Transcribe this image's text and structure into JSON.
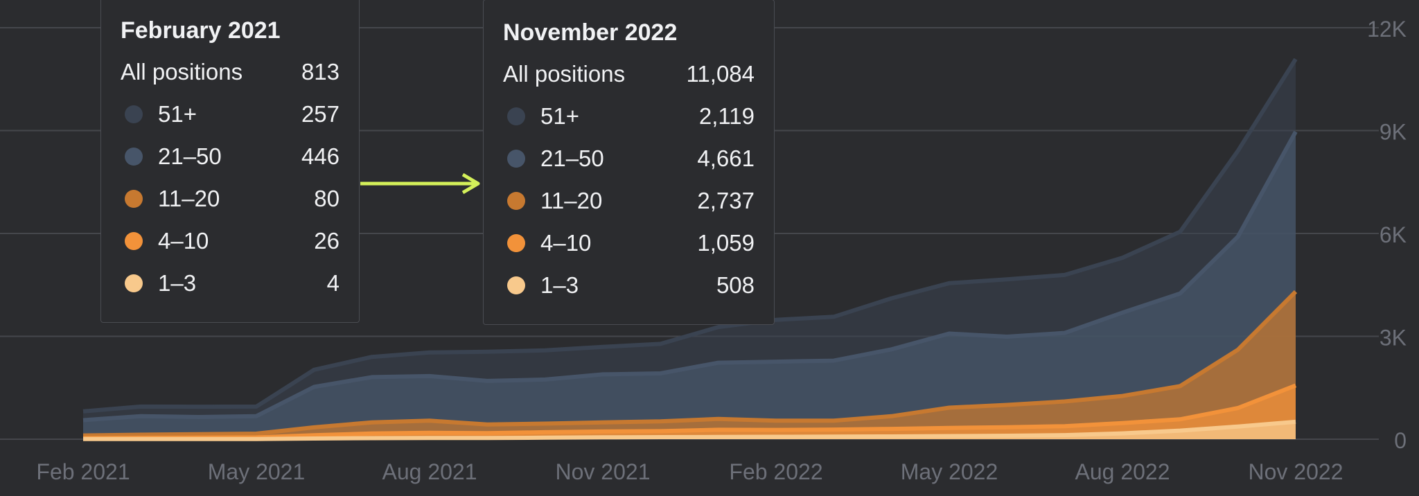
{
  "chart_data": {
    "type": "area",
    "title": "",
    "xlabel": "",
    "ylabel": "",
    "x_tick_labels": [
      "Feb 2021",
      "May 2021",
      "Aug 2021",
      "Nov 2021",
      "Feb 2022",
      "May 2022",
      "Aug 2022",
      "Nov 2022"
    ],
    "y_tick_labels": [
      "12K",
      "9K",
      "6K",
      "3K",
      "0"
    ],
    "ylim": [
      0,
      12000
    ],
    "y_axis_side": "right",
    "grid": true,
    "x": [
      "2021-02",
      "2021-03",
      "2021-04",
      "2021-05",
      "2021-06",
      "2021-07",
      "2021-08",
      "2021-09",
      "2021-10",
      "2021-11",
      "2021-12",
      "2022-01",
      "2022-02",
      "2022-03",
      "2022-04",
      "2022-05",
      "2022-06",
      "2022-07",
      "2022-08",
      "2022-09",
      "2022-10",
      "2022-11"
    ],
    "stacking": "stacked",
    "series": [
      {
        "name": "1–3",
        "color": "#f8c98c",
        "values": [
          4,
          6,
          7,
          7,
          20,
          30,
          35,
          35,
          45,
          55,
          60,
          65,
          70,
          75,
          80,
          90,
          100,
          120,
          170,
          250,
          370,
          508
        ]
      },
      {
        "name": "4–10",
        "color": "#f2923a",
        "values": [
          26,
          35,
          40,
          45,
          95,
          135,
          150,
          140,
          160,
          170,
          175,
          210,
          200,
          205,
          220,
          240,
          250,
          260,
          300,
          330,
          540,
          1059
        ]
      },
      {
        "name": "11–20",
        "color": "#c77930",
        "values": [
          80,
          90,
          100,
          110,
          230,
          325,
          355,
          255,
          250,
          265,
          285,
          315,
          270,
          260,
          370,
          590,
          650,
          720,
          790,
          970,
          1700,
          2737
        ]
      },
      {
        "name": "21–50",
        "color": "#475569",
        "values": [
          446,
          540,
          500,
          510,
          1180,
          1320,
          1300,
          1270,
          1285,
          1400,
          1400,
          1640,
          1720,
          1750,
          1950,
          2160,
          1990,
          2000,
          2430,
          2700,
          3300,
          4661
        ]
      },
      {
        "name": "51+",
        "color": "#3a4351",
        "values": [
          257,
          280,
          300,
          280,
          500,
          590,
          690,
          850,
          850,
          800,
          860,
          1040,
          1220,
          1280,
          1490,
          1470,
          1670,
          1690,
          1600,
          1800,
          2500,
          2119
        ]
      }
    ],
    "tooltips": [
      {
        "title": "February 2021",
        "total_label": "All positions",
        "total_value": "813",
        "rows": [
          {
            "label": "51+",
            "value": "257",
            "color": "#3a4351"
          },
          {
            "label": "21–50",
            "value": "446",
            "color": "#475569"
          },
          {
            "label": "11–20",
            "value": "80",
            "color": "#c77930"
          },
          {
            "label": "4–10",
            "value": "26",
            "color": "#f2923a"
          },
          {
            "label": "1–3",
            "value": "4",
            "color": "#f8c98c"
          }
        ]
      },
      {
        "title": "November 2022",
        "total_label": "All positions",
        "total_value": "11,084",
        "rows": [
          {
            "label": "51+",
            "value": "2,119",
            "color": "#3a4351"
          },
          {
            "label": "21–50",
            "value": "4,661",
            "color": "#475569"
          },
          {
            "label": "11–20",
            "value": "2,737",
            "color": "#c77930"
          },
          {
            "label": "4–10",
            "value": "1,059",
            "color": "#f2923a"
          },
          {
            "label": "1–3",
            "value": "508",
            "color": "#f8c98c"
          }
        ]
      }
    ],
    "arrow_color": "#d4f05a"
  }
}
